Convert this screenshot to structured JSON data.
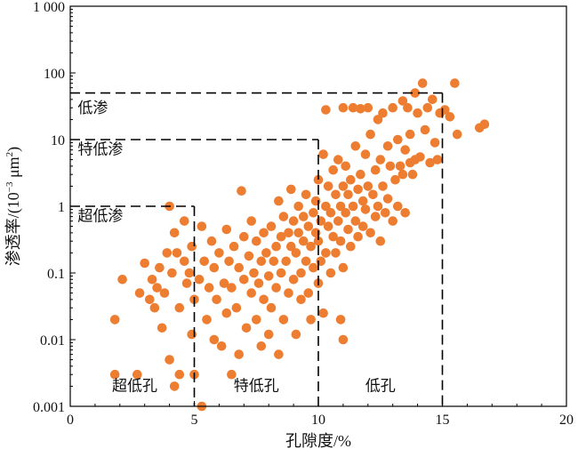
{
  "chart_data": {
    "type": "scatter",
    "title": "",
    "xlabel": "孔隙度/%",
    "ylabel_main": "渗透率/(10",
    "ylabel_exp": "−3",
    "ylabel_unit": " μm",
    "ylabel_unit_exp": "2",
    "ylabel_close": ")",
    "xlim": [
      0,
      20
    ],
    "ylim": [
      0.001,
      1000
    ],
    "yscale": "log",
    "grid": false,
    "marker_color": "#ED7D31",
    "x_ticks": [
      0,
      5,
      10,
      15,
      20
    ],
    "x_tick_labels": [
      "0",
      "5",
      "10",
      "15",
      "20"
    ],
    "y_ticks": [
      0.001,
      0.01,
      0.1,
      1,
      10,
      100,
      1000
    ],
    "y_tick_labels": [
      "0.001",
      "0.01",
      "0.1",
      "1",
      "10",
      "100",
      "1 000"
    ],
    "boundaries": [
      {
        "x": 5,
        "y": 1
      },
      {
        "x": 10,
        "y": 10
      },
      {
        "x": 15,
        "y": 50
      }
    ],
    "region_labels": {
      "permeability": [
        {
          "text": "低渗",
          "x": 0.3,
          "y": 25
        },
        {
          "text": "特低渗",
          "x": 0.3,
          "y": 6
        },
        {
          "text": "超低渗",
          "x": 0.3,
          "y": 0.6
        }
      ],
      "porosity": [
        {
          "text": "超低孔",
          "x": 2.6,
          "y": 0.0017
        },
        {
          "text": "特低孔",
          "x": 7.5,
          "y": 0.0017
        },
        {
          "text": "低孔",
          "x": 12.5,
          "y": 0.0017
        }
      ]
    },
    "points_note": "sampled",
    "points": [
      [
        1.8,
        0.02
      ],
      [
        1.8,
        0.003
      ],
      [
        2.1,
        0.08
      ],
      [
        2.7,
        0.003
      ],
      [
        2.8,
        0.05
      ],
      [
        3.0,
        0.14
      ],
      [
        3.2,
        0.04
      ],
      [
        3.3,
        0.08
      ],
      [
        3.4,
        0.03
      ],
      [
        3.5,
        0.06
      ],
      [
        3.6,
        0.12
      ],
      [
        3.7,
        0.015
      ],
      [
        3.8,
        0.05
      ],
      [
        3.9,
        0.2
      ],
      [
        4.0,
        0.005
      ],
      [
        4.0,
        1.0
      ],
      [
        4.1,
        0.1
      ],
      [
        4.2,
        0.4
      ],
      [
        4.2,
        0.002
      ],
      [
        4.3,
        0.2
      ],
      [
        4.4,
        0.003
      ],
      [
        4.4,
        0.03
      ],
      [
        4.6,
        0.6
      ],
      [
        4.6,
        0.15
      ],
      [
        4.7,
        0.07
      ],
      [
        4.8,
        0.1
      ],
      [
        4.9,
        0.25
      ],
      [
        4.9,
        0.012
      ],
      [
        5.0,
        0.04
      ],
      [
        5.0,
        0.003
      ],
      [
        5.2,
        0.08
      ],
      [
        5.3,
        0.5
      ],
      [
        5.3,
        0.001
      ],
      [
        5.4,
        0.15
      ],
      [
        5.5,
        0.02
      ],
      [
        5.6,
        0.06
      ],
      [
        5.7,
        0.3
      ],
      [
        5.8,
        0.01
      ],
      [
        5.8,
        0.12
      ],
      [
        5.9,
        0.04
      ],
      [
        6.0,
        0.2
      ],
      [
        6.1,
        0.008
      ],
      [
        6.2,
        0.07
      ],
      [
        6.3,
        0.45
      ],
      [
        6.3,
        0.025
      ],
      [
        6.4,
        0.15
      ],
      [
        6.5,
        0.003
      ],
      [
        6.5,
        0.06
      ],
      [
        6.6,
        0.25
      ],
      [
        6.7,
        0.03
      ],
      [
        6.8,
        0.12
      ],
      [
        6.8,
        0.006
      ],
      [
        6.9,
        1.7
      ],
      [
        7.0,
        0.08
      ],
      [
        7.0,
        0.35
      ],
      [
        7.1,
        0.015
      ],
      [
        7.2,
        0.18
      ],
      [
        7.3,
        0.05
      ],
      [
        7.3,
        0.6
      ],
      [
        7.4,
        0.1
      ],
      [
        7.5,
        0.02
      ],
      [
        7.5,
        0.3
      ],
      [
        7.6,
        0.07
      ],
      [
        7.7,
        0.008
      ],
      [
        7.7,
        0.15
      ],
      [
        7.8,
        0.4
      ],
      [
        7.8,
        0.04
      ],
      [
        7.9,
        0.2
      ],
      [
        8.0,
        0.012
      ],
      [
        8.0,
        0.09
      ],
      [
        8.1,
        0.5
      ],
      [
        8.1,
        0.03
      ],
      [
        8.2,
        0.15
      ],
      [
        8.3,
        0.25
      ],
      [
        8.3,
        0.06
      ],
      [
        8.4,
        0.006
      ],
      [
        8.4,
        1.2
      ],
      [
        8.5,
        0.1
      ],
      [
        8.5,
        0.35
      ],
      [
        8.6,
        0.02
      ],
      [
        8.6,
        0.7
      ],
      [
        8.7,
        0.15
      ],
      [
        8.8,
        0.05
      ],
      [
        8.8,
        0.4
      ],
      [
        8.9,
        0.25
      ],
      [
        8.9,
        1.8
      ],
      [
        9.0,
        0.08
      ],
      [
        9.0,
        0.6
      ],
      [
        9.1,
        0.012
      ],
      [
        9.1,
        0.2
      ],
      [
        9.2,
        0.4
      ],
      [
        9.2,
        1.0
      ],
      [
        9.3,
        0.1
      ],
      [
        9.3,
        0.04
      ],
      [
        9.4,
        0.3
      ],
      [
        9.4,
        0.7
      ],
      [
        9.5,
        0.15
      ],
      [
        9.5,
        1.5
      ],
      [
        9.6,
        0.05
      ],
      [
        9.6,
        0.5
      ],
      [
        9.7,
        0.25
      ],
      [
        9.7,
        0.02
      ],
      [
        9.8,
        0.8
      ],
      [
        9.8,
        0.12
      ],
      [
        9.9,
        0.4
      ],
      [
        9.9,
        1.2
      ],
      [
        10.0,
        0.07
      ],
      [
        10.0,
        0.3
      ],
      [
        10.0,
        2.5
      ],
      [
        10.1,
        0.6
      ],
      [
        10.1,
        0.15
      ],
      [
        10.2,
        6.0
      ],
      [
        10.2,
        0.025
      ],
      [
        10.3,
        1.0
      ],
      [
        10.3,
        0.2
      ],
      [
        10.3,
        28.0
      ],
      [
        10.4,
        0.5
      ],
      [
        10.4,
        2.0
      ],
      [
        10.5,
        0.1
      ],
      [
        10.5,
        0.8
      ],
      [
        10.6,
        0.35
      ],
      [
        10.6,
        3.5
      ],
      [
        10.7,
        1.5
      ],
      [
        10.7,
        0.2
      ],
      [
        10.8,
        0.6
      ],
      [
        10.8,
        5.0
      ],
      [
        10.9,
        1.0
      ],
      [
        10.9,
        0.3
      ],
      [
        11.0,
        2.0
      ],
      [
        11.0,
        0.12
      ],
      [
        11.0,
        30.0
      ],
      [
        11.1,
        0.8
      ],
      [
        11.1,
        4.0
      ],
      [
        11.2,
        0.45
      ],
      [
        11.2,
        1.5
      ],
      [
        11.3,
        0.25
      ],
      [
        11.3,
        2.5
      ],
      [
        11.4,
        1.0
      ],
      [
        11.4,
        30.0
      ],
      [
        11.5,
        0.6
      ],
      [
        11.5,
        8.0
      ],
      [
        11.6,
        1.8
      ],
      [
        11.6,
        0.35
      ],
      [
        11.7,
        3.0
      ],
      [
        11.7,
        29.0
      ],
      [
        11.8,
        1.2
      ],
      [
        11.8,
        0.5
      ],
      [
        11.9,
        6.0
      ],
      [
        11.9,
        0.9
      ],
      [
        12.0,
        2.0
      ],
      [
        12.0,
        30.0
      ],
      [
        12.1,
        0.4
      ],
      [
        12.1,
        12.0
      ],
      [
        12.2,
        1.5
      ],
      [
        12.3,
        3.5
      ],
      [
        12.3,
        0.7
      ],
      [
        12.4,
        20.0
      ],
      [
        12.4,
        1.0
      ],
      [
        12.5,
        5.0
      ],
      [
        12.5,
        0.3
      ],
      [
        12.6,
        2.0
      ],
      [
        12.6,
        25.0
      ],
      [
        12.7,
        0.8
      ],
      [
        12.8,
        8.0
      ],
      [
        12.8,
        1.3
      ],
      [
        12.9,
        4.0
      ],
      [
        13.0,
        0.6
      ],
      [
        13.0,
        30.0
      ],
      [
        13.1,
        2.5
      ],
      [
        13.2,
        10.0
      ],
      [
        13.2,
        1.0
      ],
      [
        13.3,
        4.0
      ],
      [
        13.4,
        38.0
      ],
      [
        13.4,
        3.0
      ],
      [
        13.5,
        7.0
      ],
      [
        13.5,
        0.8
      ],
      [
        13.6,
        30.0
      ],
      [
        13.7,
        4.5
      ],
      [
        13.7,
        12.0
      ],
      [
        13.8,
        3.0
      ],
      [
        13.9,
        50.0
      ],
      [
        13.9,
        5.0
      ],
      [
        14.0,
        25.0
      ],
      [
        14.1,
        5.5
      ],
      [
        14.2,
        70.0
      ],
      [
        14.3,
        14.0
      ],
      [
        14.4,
        30.0
      ],
      [
        14.5,
        4.5
      ],
      [
        14.6,
        40.0
      ],
      [
        14.7,
        9.0
      ],
      [
        14.8,
        5.0
      ],
      [
        14.9,
        25.0
      ],
      [
        15.1,
        28.0
      ],
      [
        15.3,
        22.0
      ],
      [
        15.5,
        70.0
      ],
      [
        15.6,
        12.0
      ],
      [
        16.5,
        15.0
      ],
      [
        16.7,
        17.0
      ],
      [
        11.0,
        0.01
      ],
      [
        10.9,
        0.02
      ]
    ]
  }
}
